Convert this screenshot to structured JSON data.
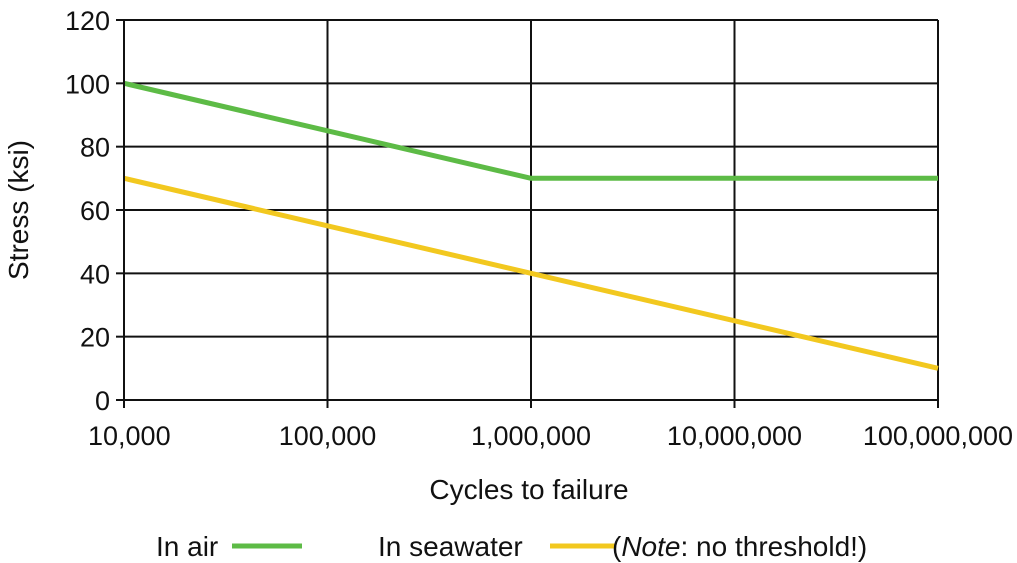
{
  "chart_data": {
    "type": "line",
    "title": "",
    "xlabel": "Cycles to failure",
    "ylabel": "Stress (ksi)",
    "x_scale": "log",
    "xlim": [
      10000,
      100000000
    ],
    "ylim": [
      0,
      120
    ],
    "grid": true,
    "x_ticks": [
      10000,
      100000,
      1000000,
      10000000,
      100000000
    ],
    "x_tick_labels": [
      "10,000",
      "100,000",
      "1,000,000",
      "10,000,000",
      "100,000,000"
    ],
    "y_ticks": [
      0,
      20,
      40,
      60,
      80,
      100,
      120
    ],
    "y_tick_labels": [
      "0",
      "20",
      "40",
      "60",
      "80",
      "100",
      "120"
    ],
    "series": [
      {
        "name": "In air",
        "color": "#5dbb46",
        "x": [
          10000,
          1000000,
          100000000
        ],
        "y": [
          100,
          70,
          70
        ]
      },
      {
        "name": "In seawater",
        "color": "#f2c81f",
        "x": [
          10000,
          100000000
        ],
        "y": [
          70,
          10
        ]
      }
    ],
    "legend": {
      "position": "bottom",
      "items": [
        {
          "label": "In air",
          "note_prefix": "",
          "note_emph": "",
          "note_suffix": ""
        },
        {
          "label": "In seawater",
          "note_prefix": "(",
          "note_emph": "Note",
          "note_suffix": ": no threshold!)"
        }
      ]
    }
  }
}
